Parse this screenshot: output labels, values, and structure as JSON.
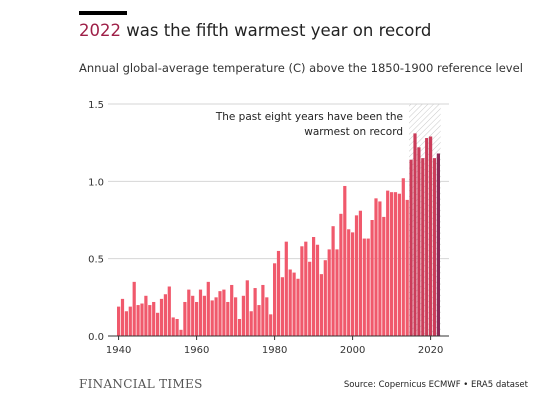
{
  "header": {
    "title_year": "2022",
    "title_rest": " was the fifth warmest year on record",
    "subtitle": "Annual global-average temperature (C) above the 1850-1900 reference level"
  },
  "footer": {
    "brand": "FINANCIAL TIMES",
    "source": "Source: Copernicus ECMWF • ERA5 dataset"
  },
  "colors": {
    "bar": "#f0596c",
    "bar_highlight": "#cb3d5a",
    "bar_latest": "#8a2a57",
    "title_accent": "#9e1f47",
    "grid": "#d6d6d6"
  },
  "chart_data": {
    "type": "bar",
    "title": "Annual global-average temperature (C) above the 1850-1900 reference level",
    "xlabel": "",
    "ylabel": "",
    "xlim": [
      1940,
      2022
    ],
    "ylim": [
      0,
      1.5
    ],
    "x_ticks": [
      "1940",
      "1960",
      "1980",
      "2000",
      "2020"
    ],
    "y_ticks": [
      "0.0",
      "0.5",
      "1.0",
      "1.5"
    ],
    "grid": true,
    "x": [
      1940,
      1941,
      1942,
      1943,
      1944,
      1945,
      1946,
      1947,
      1948,
      1949,
      1950,
      1951,
      1952,
      1953,
      1954,
      1955,
      1956,
      1957,
      1958,
      1959,
      1960,
      1961,
      1962,
      1963,
      1964,
      1965,
      1966,
      1967,
      1968,
      1969,
      1970,
      1971,
      1972,
      1973,
      1974,
      1975,
      1976,
      1977,
      1978,
      1979,
      1980,
      1981,
      1982,
      1983,
      1984,
      1985,
      1986,
      1987,
      1988,
      1989,
      1990,
      1991,
      1992,
      1993,
      1994,
      1995,
      1996,
      1997,
      1998,
      1999,
      2000,
      2001,
      2002,
      2003,
      2004,
      2005,
      2006,
      2007,
      2008,
      2009,
      2010,
      2011,
      2012,
      2013,
      2014,
      2015,
      2016,
      2017,
      2018,
      2019,
      2020,
      2021,
      2022
    ],
    "values": [
      0.19,
      0.24,
      0.16,
      0.19,
      0.35,
      0.2,
      0.21,
      0.26,
      0.2,
      0.22,
      0.15,
      0.24,
      0.27,
      0.32,
      0.12,
      0.11,
      0.04,
      0.22,
      0.3,
      0.26,
      0.22,
      0.3,
      0.26,
      0.35,
      0.23,
      0.25,
      0.29,
      0.3,
      0.22,
      0.33,
      0.25,
      0.11,
      0.26,
      0.36,
      0.16,
      0.31,
      0.2,
      0.33,
      0.25,
      0.14,
      0.47,
      0.55,
      0.38,
      0.61,
      0.43,
      0.41,
      0.37,
      0.58,
      0.61,
      0.48,
      0.64,
      0.59,
      0.4,
      0.49,
      0.56,
      0.71,
      0.56,
      0.79,
      0.97,
      0.69,
      0.67,
      0.78,
      0.81,
      0.63,
      0.63,
      0.75,
      0.89,
      0.87,
      0.77,
      0.94,
      0.93,
      0.93,
      0.92,
      1.02,
      0.88,
      1.14,
      1.31,
      1.22,
      1.15,
      1.28,
      1.29,
      1.15,
      1.18
    ],
    "highlight_from": 2015,
    "annotation": [
      "The past eight years have been the",
      "warmest on record"
    ]
  }
}
